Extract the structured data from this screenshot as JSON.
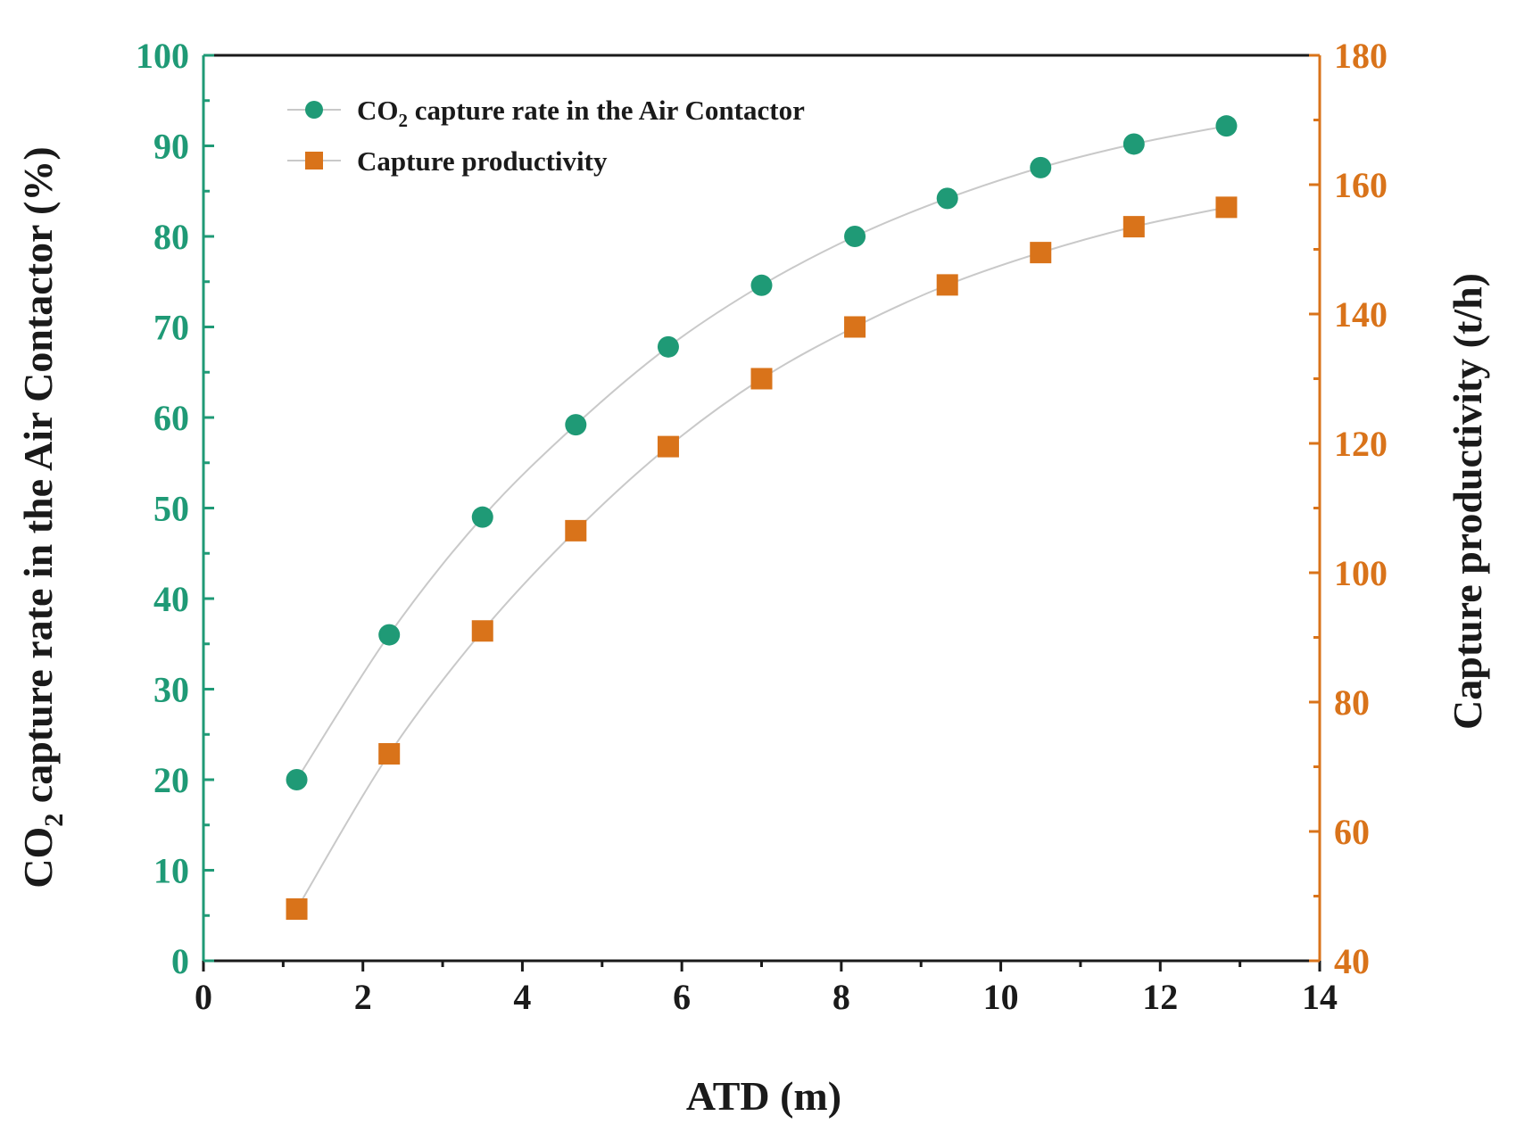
{
  "chart_data": {
    "type": "scatter",
    "x_label": "ATD (m)",
    "y_label_left": {
      "prefix": "CO",
      "subscript": "2",
      "suffix": " capture rate in the Air Contactor (%)"
    },
    "y_label_right": "Capture productivity (t/h)",
    "x_range": [
      0,
      14
    ],
    "x_ticks": [
      "0",
      "2",
      "4",
      "6",
      "8",
      "10",
      "12",
      "14"
    ],
    "y_left_range": [
      0,
      100
    ],
    "y_left_ticks": [
      "0",
      "10",
      "20",
      "30",
      "40",
      "50",
      "60",
      "70",
      "80",
      "90",
      "100"
    ],
    "y_right_range": [
      40,
      180
    ],
    "y_right_ticks": [
      "40",
      "60",
      "80",
      "100",
      "120",
      "140",
      "160",
      "180"
    ],
    "grid": false,
    "legend_position": "top-left",
    "colors": {
      "left_axis": "#1f9a76",
      "right_axis": "#d9731a",
      "connector": "#c9c9c9",
      "frame": "#1a1a1a"
    },
    "series": [
      {
        "name": {
          "prefix": "CO",
          "subscript": "2",
          "suffix": " capture rate in the Air Contactor"
        },
        "axis": "left",
        "marker": "circle",
        "x": [
          1.17,
          2.33,
          3.5,
          4.67,
          5.83,
          7.0,
          8.17,
          9.33,
          10.5,
          11.67,
          12.83
        ],
        "y": [
          20.0,
          36.0,
          49.0,
          59.2,
          67.8,
          74.6,
          80.0,
          84.2,
          87.6,
          90.2,
          92.2
        ]
      },
      {
        "name": "Capture productivity",
        "axis": "right",
        "marker": "square",
        "x": [
          1.17,
          2.33,
          3.5,
          4.67,
          5.83,
          7.0,
          8.17,
          9.33,
          10.5,
          11.67,
          12.83
        ],
        "y": [
          48.0,
          72.0,
          91.0,
          106.5,
          119.5,
          130.0,
          138.0,
          144.5,
          149.5,
          153.5,
          156.5
        ]
      }
    ]
  }
}
